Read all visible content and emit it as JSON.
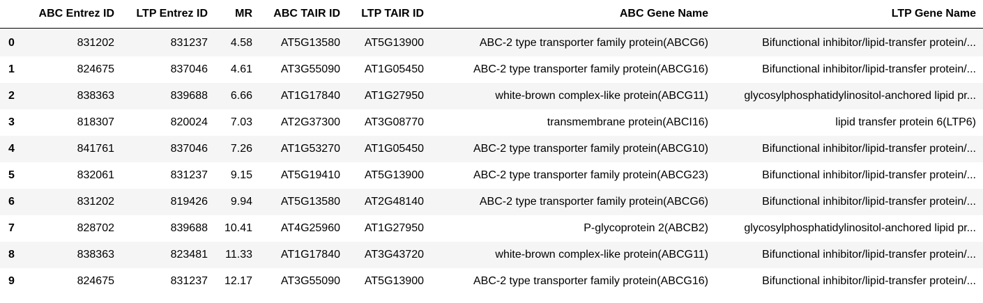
{
  "table": {
    "index_header": "",
    "columns": [
      "ABC Entrez ID",
      "LTP Entrez ID",
      "MR",
      "ABC TAIR ID",
      "LTP TAIR ID",
      "ABC Gene Name",
      "LTP Gene Name"
    ],
    "rows": [
      {
        "index": "0",
        "cells": [
          "831202",
          "831237",
          "4.58",
          "AT5G13580",
          "AT5G13900",
          "ABC-2 type transporter family protein(ABCG6)",
          "Bifunctional inhibitor/lipid-transfer protein/..."
        ]
      },
      {
        "index": "1",
        "cells": [
          "824675",
          "837046",
          "4.61",
          "AT3G55090",
          "AT1G05450",
          "ABC-2 type transporter family protein(ABCG16)",
          "Bifunctional inhibitor/lipid-transfer protein/..."
        ]
      },
      {
        "index": "2",
        "cells": [
          "838363",
          "839688",
          "6.66",
          "AT1G17840",
          "AT1G27950",
          "white-brown complex-like protein(ABCG11)",
          "glycosylphosphatidylinositol-anchored lipid pr..."
        ]
      },
      {
        "index": "3",
        "cells": [
          "818307",
          "820024",
          "7.03",
          "AT2G37300",
          "AT3G08770",
          "transmembrane protein(ABCI16)",
          "lipid transfer protein 6(LTP6)"
        ]
      },
      {
        "index": "4",
        "cells": [
          "841761",
          "837046",
          "7.26",
          "AT1G53270",
          "AT1G05450",
          "ABC-2 type transporter family protein(ABCG10)",
          "Bifunctional inhibitor/lipid-transfer protein/..."
        ]
      },
      {
        "index": "5",
        "cells": [
          "832061",
          "831237",
          "9.15",
          "AT5G19410",
          "AT5G13900",
          "ABC-2 type transporter family protein(ABCG23)",
          "Bifunctional inhibitor/lipid-transfer protein/..."
        ]
      },
      {
        "index": "6",
        "cells": [
          "831202",
          "819426",
          "9.94",
          "AT5G13580",
          "AT2G48140",
          "ABC-2 type transporter family protein(ABCG6)",
          "Bifunctional inhibitor/lipid-transfer protein/..."
        ]
      },
      {
        "index": "7",
        "cells": [
          "828702",
          "839688",
          "10.41",
          "AT4G25960",
          "AT1G27950",
          "P-glycoprotein 2(ABCB2)",
          "glycosylphosphatidylinositol-anchored lipid pr..."
        ]
      },
      {
        "index": "8",
        "cells": [
          "838363",
          "823481",
          "11.33",
          "AT1G17840",
          "AT3G43720",
          "white-brown complex-like protein(ABCG11)",
          "Bifunctional inhibitor/lipid-transfer protein/..."
        ]
      },
      {
        "index": "9",
        "cells": [
          "824675",
          "831237",
          "12.17",
          "AT3G55090",
          "AT5G13900",
          "ABC-2 type transporter family protein(ABCG16)",
          "Bifunctional inhibitor/lipid-transfer protein/..."
        ]
      }
    ],
    "colors": {
      "header_border": "#000000",
      "stripe": "#f5f5f5",
      "text": "#000000"
    }
  }
}
